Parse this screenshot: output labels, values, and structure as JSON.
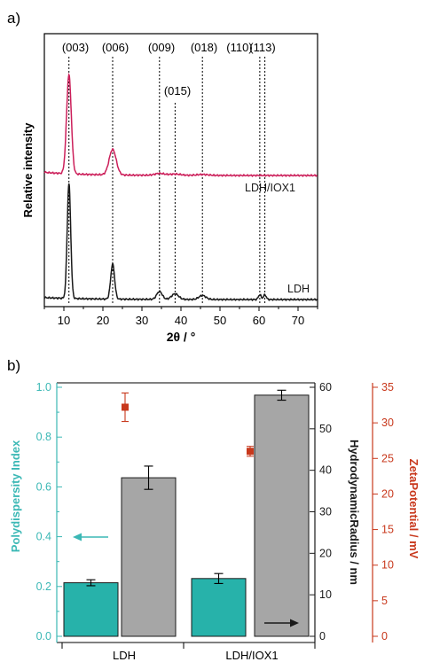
{
  "chart_data": [
    {
      "type": "line",
      "panel_label": "a)",
      "xlabel": "2θ / °",
      "ylabel": "Relative intensity",
      "xlim": [
        5,
        75
      ],
      "xticks": [
        10,
        20,
        30,
        40,
        50,
        60,
        70
      ],
      "peaks": [
        {
          "label": "(003)",
          "x": 11.3
        },
        {
          "label": "(006)",
          "x": 22.5
        },
        {
          "label": "(009)",
          "x": 34.5
        },
        {
          "label": "(015)",
          "x": 38.5
        },
        {
          "label": "(018)",
          "x": 45.5
        },
        {
          "label": "(110)",
          "x": 60.2
        },
        {
          "label": "(113)",
          "x": 61.5
        }
      ],
      "series": [
        {
          "name": "LDH/IOX1",
          "color": "#cc1f5a",
          "baseline": 0.18,
          "features": [
            {
              "x": 11.3,
              "h": 0.62,
              "w": 0.6
            },
            {
              "x": 22.5,
              "h": 0.16,
              "w": 0.9
            },
            {
              "x": 34.5,
              "h": 0.012,
              "w": 1.2
            },
            {
              "x": 38.5,
              "h": 0.008,
              "w": 1.5
            },
            {
              "x": 45.5,
              "h": 0.006,
              "w": 1.5
            }
          ]
        },
        {
          "name": "LDH",
          "color": "#1a1a1a",
          "baseline": 0.0,
          "features": [
            {
              "x": 11.3,
              "h": 0.72,
              "w": 0.45
            },
            {
              "x": 22.5,
              "h": 0.22,
              "w": 0.5
            },
            {
              "x": 34.5,
              "h": 0.05,
              "w": 0.7
            },
            {
              "x": 38.5,
              "h": 0.035,
              "w": 0.9
            },
            {
              "x": 45.5,
              "h": 0.025,
              "w": 0.9
            },
            {
              "x": 60.2,
              "h": 0.03,
              "w": 0.35
            },
            {
              "x": 61.5,
              "h": 0.03,
              "w": 0.35
            }
          ]
        }
      ]
    },
    {
      "type": "bar",
      "panel_label": "b)",
      "categories": [
        "LDH",
        "LDH/IOX1"
      ],
      "left_axis": {
        "label": "Polydispersity Index",
        "lim": [
          0,
          1.0
        ],
        "ticks": [
          "0.0",
          "0.2",
          "0.4",
          "0.6",
          "0.8",
          "1.0"
        ],
        "color": "#3bb8b5"
      },
      "middle_axis": {
        "label": "HydrodynamicRadius / nm",
        "lim": [
          0,
          60
        ],
        "ticks": [
          "0",
          "10",
          "20",
          "30",
          "40",
          "50",
          "60"
        ],
        "color": "#1a1a1a"
      },
      "right_axis": {
        "label": "ZetaPotential / mV",
        "lim": [
          0,
          35
        ],
        "ticks": [
          "0",
          "5",
          "10",
          "15",
          "20",
          "25",
          "30",
          "35"
        ],
        "color": "#c8381c"
      },
      "series": [
        {
          "name": "Polydispersity Index",
          "axis": "left",
          "color": "#27b2aa",
          "values": [
            0.215,
            0.232
          ],
          "errors": [
            0.012,
            0.02
          ]
        },
        {
          "name": "Hydrodynamic Radius",
          "axis": "middle",
          "color": "#a6a6a6",
          "values": [
            38.2,
            58.1
          ],
          "errors": [
            2.8,
            1.2
          ]
        },
        {
          "name": "Zeta Potential",
          "axis": "right",
          "color": "#c8381c",
          "values": [
            32.2,
            26.0
          ],
          "errors": [
            2.0,
            0.7
          ]
        }
      ]
    }
  ]
}
